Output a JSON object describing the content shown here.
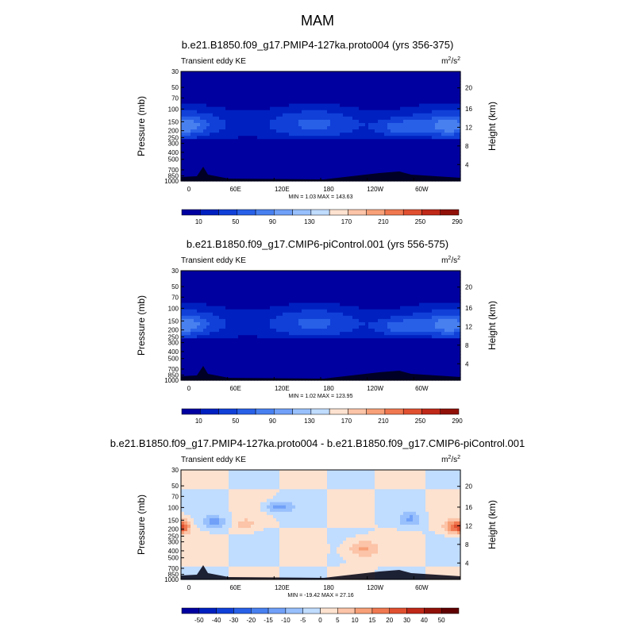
{
  "title": "MAM",
  "chart_data": [
    {
      "type": "heatmap",
      "title": "b.e21.B1850.f09_g17.PMIP4-127ka.proto004 (yrs 356-375)",
      "subtitle_left": "Transient eddy KE",
      "units": "m",
      "units_sup": "2",
      "units_tail": "/s",
      "units_sup2": "2",
      "ylabel": "Pressure (mb)",
      "ylabel_right": "Height (km)",
      "x_ticks": [
        "0",
        "60E",
        "120E",
        "180",
        "120W",
        "60W"
      ],
      "y_ticks": [
        "30",
        "50",
        "70",
        "100",
        "150",
        "200",
        "250",
        "300",
        "400",
        "500",
        "700",
        "850",
        "1000"
      ],
      "y_ticks_right": [
        "20",
        "16",
        "12",
        "8",
        "4"
      ],
      "stats": "MIN =   1.03   MAX = 143.63",
      "colorbar_labels": [
        "10",
        "50",
        "90",
        "130",
        "170",
        "210",
        "250",
        "290"
      ],
      "colorbar_colors": [
        "#0000a0",
        "#0020c0",
        "#1040d8",
        "#2860e8",
        "#4880f0",
        "#70a0f8",
        "#98c0fc",
        "#c0dcff",
        "#fde2d0",
        "#fcc4a8",
        "#f8a078",
        "#f07850",
        "#e05030",
        "#c02818",
        "#901008"
      ],
      "levels": [
        10,
        30,
        50,
        70,
        90
      ]
    },
    {
      "type": "heatmap",
      "title": "b.e21.B1850.f09_g17.CMIP6-piControl.001 (yrs 556-575)",
      "subtitle_left": "Transient eddy KE",
      "units": "m",
      "units_sup": "2",
      "units_tail": "/s",
      "units_sup2": "2",
      "ylabel": "Pressure (mb)",
      "ylabel_right": "Height (km)",
      "x_ticks": [
        "0",
        "60E",
        "120E",
        "180",
        "120W",
        "60W"
      ],
      "y_ticks": [
        "30",
        "50",
        "70",
        "100",
        "150",
        "200",
        "250",
        "300",
        "400",
        "500",
        "700",
        "850",
        "1000"
      ],
      "y_ticks_right": [
        "20",
        "16",
        "12",
        "8",
        "4"
      ],
      "stats": "MIN =   1.02   MAX = 123.95",
      "colorbar_labels": [
        "10",
        "50",
        "90",
        "130",
        "170",
        "210",
        "250",
        "290"
      ],
      "colorbar_colors": [
        "#0000a0",
        "#0020c0",
        "#1040d8",
        "#2860e8",
        "#4880f0",
        "#70a0f8",
        "#98c0fc",
        "#c0dcff",
        "#fde2d0",
        "#fcc4a8",
        "#f8a078",
        "#f07850",
        "#e05030",
        "#c02818",
        "#901008"
      ],
      "levels": [
        10,
        30,
        50,
        70,
        90
      ]
    },
    {
      "type": "heatmap",
      "title": "b.e21.B1850.f09_g17.PMIP4-127ka.proto004 - b.e21.B1850.f09_g17.CMIP6-piControl.001",
      "subtitle_left": "Transient eddy KE",
      "units": "m",
      "units_sup": "2",
      "units_tail": "/s",
      "units_sup2": "2",
      "ylabel": "Pressure (mb)",
      "ylabel_right": "Height (km)",
      "x_ticks": [
        "0",
        "60E",
        "120E",
        "180",
        "120W",
        "60W"
      ],
      "y_ticks": [
        "30",
        "50",
        "70",
        "100",
        "150",
        "200",
        "250",
        "300",
        "400",
        "500",
        "700",
        "850",
        "1000"
      ],
      "y_ticks_right": [
        "20",
        "16",
        "12",
        "8",
        "4"
      ],
      "stats": "MIN = -19.42   MAX =  27.16",
      "colorbar_labels": [
        "-50",
        "-40",
        "-30",
        "-20",
        "-15",
        "-10",
        "-5",
        "0",
        "5",
        "10",
        "15",
        "20",
        "30",
        "40",
        "50"
      ],
      "colorbar_colors": [
        "#0000a0",
        "#0020c0",
        "#1040d8",
        "#2860e8",
        "#4880f0",
        "#70a0f8",
        "#98c0fc",
        "#c0dcff",
        "#fde2d0",
        "#fcc4a8",
        "#f8a078",
        "#f07850",
        "#e05030",
        "#c02818",
        "#901008",
        "#600000"
      ],
      "levels": [
        -10,
        -5,
        0,
        5,
        10
      ]
    }
  ]
}
